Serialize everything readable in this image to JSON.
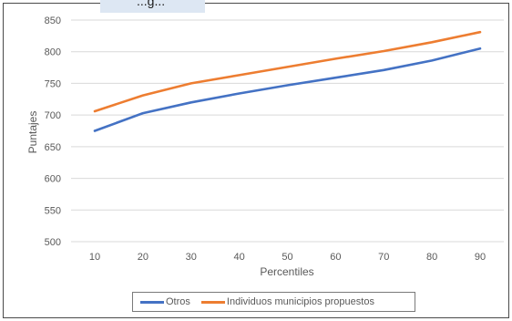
{
  "chart_data": {
    "type": "line",
    "title_fragment": "...g...",
    "xlabel": "Percentiles",
    "ylabel": "Puntajes",
    "x": [
      10,
      20,
      30,
      40,
      50,
      60,
      70,
      80,
      90
    ],
    "ylim": [
      500,
      850
    ],
    "yticks": [
      500,
      550,
      600,
      650,
      700,
      750,
      800,
      850
    ],
    "grid": true,
    "legend_position": "bottom",
    "series": [
      {
        "name": "Otros",
        "color": "#4472c4",
        "values": [
          675,
          703,
          720,
          734,
          747,
          759,
          771,
          786,
          805
        ]
      },
      {
        "name": "Individuos municipios propuestos",
        "color": "#ed7d31",
        "values": [
          706,
          731,
          750,
          763,
          776,
          789,
          801,
          815,
          831
        ]
      }
    ]
  }
}
